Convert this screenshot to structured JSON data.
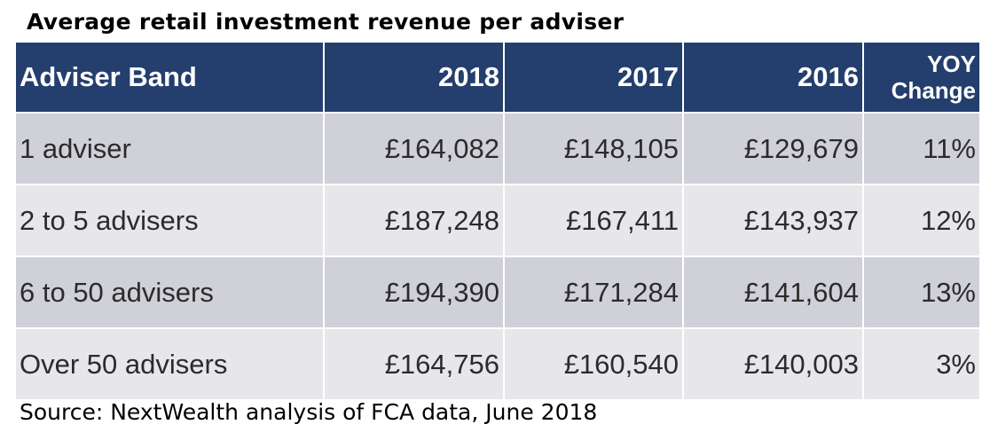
{
  "title": "Average retail investment revenue per adviser",
  "source": "Source: NextWealth analysis of FCA data, June 2018",
  "colors": {
    "header_bg": "#243e6e",
    "row_odd_bg": "#d0d0d9",
    "row_even_bg": "#e7e7eb"
  },
  "chart_data": {
    "type": "table",
    "title": "Average retail investment revenue per adviser",
    "columns": [
      "Adviser Band",
      "2018",
      "2017",
      "2016",
      "YOY Change"
    ],
    "rows": [
      [
        "1 adviser",
        "£164,082",
        "£148,105",
        "£129,679",
        "11%"
      ],
      [
        "2 to 5 advisers",
        "£187,248",
        "£167,411",
        "£143,937",
        "12%"
      ],
      [
        "6 to 50 advisers",
        "£194,390",
        "£171,284",
        "£141,604",
        "13%"
      ],
      [
        "Over 50 advisers",
        "£164,756",
        "£160,540",
        "£140,003",
        "3%"
      ]
    ],
    "values": {
      "1 adviser": {
        "2018": 164082,
        "2017": 148105,
        "2016": 129679,
        "yoy_change_pct": 11
      },
      "2 to 5 advisers": {
        "2018": 187248,
        "2017": 167411,
        "2016": 143937,
        "yoy_change_pct": 12
      },
      "6 to 50 advisers": {
        "2018": 194390,
        "2017": 171284,
        "2016": 141604,
        "yoy_change_pct": 13
      },
      "Over 50 advisers": {
        "2018": 164756,
        "2017": 160540,
        "2016": 140003,
        "yoy_change_pct": 3
      }
    },
    "source": "Source: NextWealth analysis of FCA data, June 2018"
  }
}
